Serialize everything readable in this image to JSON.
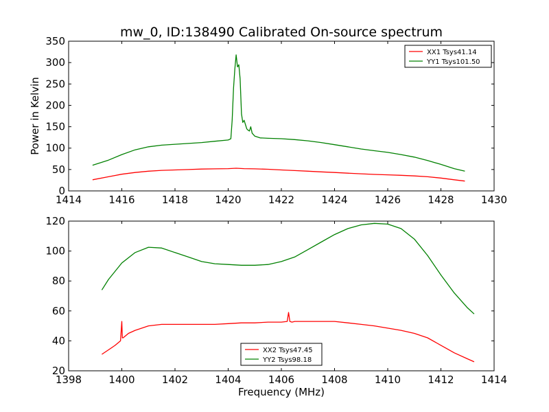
{
  "figure": {
    "title": "mw_0, ID:138490 Calibrated On-source spectrum"
  },
  "chart_data": [
    {
      "type": "line",
      "title": "mw_0, ID:138490 Calibrated On-source spectrum",
      "xlabel": "",
      "ylabel": "Power in Kelvin",
      "xlim": [
        1414,
        1430
      ],
      "ylim": [
        0,
        350
      ],
      "xticks": [
        1414,
        1416,
        1418,
        1420,
        1422,
        1424,
        1426,
        1428,
        1430
      ],
      "yticks": [
        0,
        50,
        100,
        150,
        200,
        250,
        300,
        350
      ],
      "grid": false,
      "legend_position": "top-right",
      "series": [
        {
          "name": "XX1 Tsys41.14",
          "color": "#ff0000",
          "x": [
            1414.9,
            1415.5,
            1416.0,
            1416.5,
            1417.0,
            1417.5,
            1418.0,
            1418.5,
            1419.0,
            1419.5,
            1420.0,
            1420.3,
            1420.6,
            1421.0,
            1421.5,
            1422.0,
            1422.5,
            1423.0,
            1423.5,
            1424.0,
            1424.5,
            1425.0,
            1425.5,
            1426.0,
            1426.5,
            1427.0,
            1427.5,
            1428.0,
            1428.5,
            1428.9
          ],
          "values": [
            26,
            33,
            39,
            43,
            46,
            48,
            49,
            50,
            51,
            51.5,
            52,
            53,
            52,
            51.5,
            50.5,
            49,
            47.5,
            46,
            44.5,
            43,
            41.5,
            40,
            38.5,
            37.5,
            36.5,
            35,
            33,
            30,
            26,
            23
          ]
        },
        {
          "name": "YY1 Tsys101.50",
          "color": "#008000",
          "x": [
            1414.9,
            1415.5,
            1416.0,
            1416.5,
            1417.0,
            1417.5,
            1418.0,
            1418.5,
            1419.0,
            1419.5,
            1420.0,
            1420.1,
            1420.15,
            1420.2,
            1420.25,
            1420.3,
            1420.35,
            1420.4,
            1420.45,
            1420.5,
            1420.55,
            1420.6,
            1420.65,
            1420.7,
            1420.75,
            1420.8,
            1420.85,
            1420.9,
            1421.0,
            1421.2,
            1421.5,
            1422.0,
            1422.5,
            1423.0,
            1423.5,
            1424.0,
            1424.5,
            1425.0,
            1425.5,
            1426.0,
            1426.5,
            1427.0,
            1427.5,
            1428.0,
            1428.5,
            1428.9
          ],
          "values": [
            60,
            72,
            85,
            96,
            103,
            107,
            109,
            111,
            113,
            116,
            119,
            122,
            165,
            240,
            285,
            318,
            290,
            295,
            262,
            180,
            160,
            165,
            155,
            145,
            142,
            140,
            150,
            135,
            128,
            124,
            123,
            122,
            120,
            117,
            113,
            108,
            103,
            98,
            94,
            90,
            85,
            79,
            71,
            62,
            52,
            46
          ]
        }
      ]
    },
    {
      "type": "line",
      "title": "",
      "xlabel": "Frequency (MHz)",
      "ylabel": "",
      "xlim": [
        1398,
        1414
      ],
      "ylim": [
        20,
        120
      ],
      "xticks": [
        1398,
        1400,
        1402,
        1404,
        1406,
        1408,
        1410,
        1412,
        1414
      ],
      "yticks": [
        20,
        40,
        60,
        80,
        100,
        120
      ],
      "grid": false,
      "legend_position": "bottom-center",
      "series": [
        {
          "name": "XX2 Tsys47.45",
          "color": "#ff0000",
          "x": [
            1399.25,
            1399.5,
            1399.75,
            1399.95,
            1400.0,
            1400.02,
            1400.05,
            1400.25,
            1400.5,
            1401.0,
            1401.5,
            1402.0,
            1402.5,
            1403.0,
            1403.5,
            1404.0,
            1404.5,
            1405.0,
            1405.5,
            1406.0,
            1406.22,
            1406.27,
            1406.32,
            1406.4,
            1406.5,
            1407.0,
            1407.5,
            1408.0,
            1408.5,
            1409.0,
            1409.5,
            1410.0,
            1410.5,
            1411.0,
            1411.5,
            1412.0,
            1412.5,
            1413.0,
            1413.25
          ],
          "values": [
            31,
            34,
            37,
            40,
            53,
            42,
            42,
            45,
            47,
            50,
            51,
            51,
            51,
            51,
            51,
            51.5,
            52,
            52,
            52.5,
            52.5,
            53,
            59,
            53,
            52.5,
            53,
            53,
            53,
            53,
            52,
            51,
            50,
            48.5,
            47,
            45,
            42,
            37,
            32,
            28,
            26
          ]
        },
        {
          "name": "YY2 Tsys98.18",
          "color": "#008000",
          "x": [
            1399.25,
            1399.5,
            1400.0,
            1400.5,
            1401.0,
            1401.5,
            1402.0,
            1402.5,
            1403.0,
            1403.5,
            1404.0,
            1404.5,
            1405.0,
            1405.5,
            1406.0,
            1406.5,
            1407.0,
            1407.5,
            1408.0,
            1408.5,
            1409.0,
            1409.5,
            1410.0,
            1410.5,
            1411.0,
            1411.5,
            1412.0,
            1412.5,
            1413.0,
            1413.25
          ],
          "values": [
            74,
            81,
            92,
            99,
            102.5,
            102,
            99,
            96,
            93,
            91.5,
            91,
            90.5,
            90.5,
            91,
            93,
            96,
            101,
            106,
            111,
            115,
            117.5,
            118.5,
            118,
            115,
            108,
            97,
            84,
            72,
            62,
            58
          ]
        }
      ]
    }
  ]
}
